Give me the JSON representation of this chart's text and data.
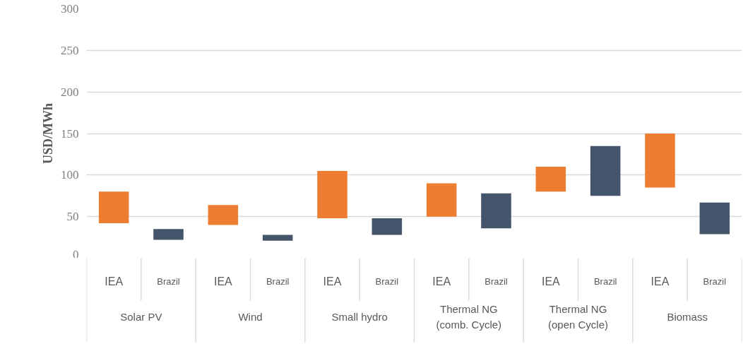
{
  "chart_data": {
    "type": "bar",
    "ylabel": "USD/MWh",
    "categories": [
      "IEA",
      "Brazil",
      "IEA",
      "Brazil",
      "IEA",
      "Brazil",
      "IEA",
      "Brazil",
      "IEA",
      "Brazil",
      "IEA",
      "Brazil"
    ],
    "base": [
      42,
      22,
      40,
      21,
      48,
      28,
      50,
      36,
      80,
      75,
      85,
      29
    ],
    "values": [
      38,
      13,
      24,
      7,
      57,
      20,
      40,
      42,
      30,
      60,
      65,
      38
    ],
    "colors": [
      "#ed7d31",
      "#44546a",
      "#ed7d31",
      "#44546a",
      "#ed7d31",
      "#44546a",
      "#ed7d31",
      "#44546a",
      "#ed7d31",
      "#44546a",
      "#ed7d31",
      "#44546a"
    ],
    "annotations": [
      "Solar PV",
      "Wind",
      "Small hydro",
      "Thermal NG\n(comb. Cycle)",
      "Thermal NG\n(open Cycle)",
      "Biomass"
    ],
    "ylim": [
      0,
      300
    ],
    "yticks": [
      0,
      50,
      100,
      150,
      200,
      250,
      300
    ],
    "grid": "y"
  }
}
